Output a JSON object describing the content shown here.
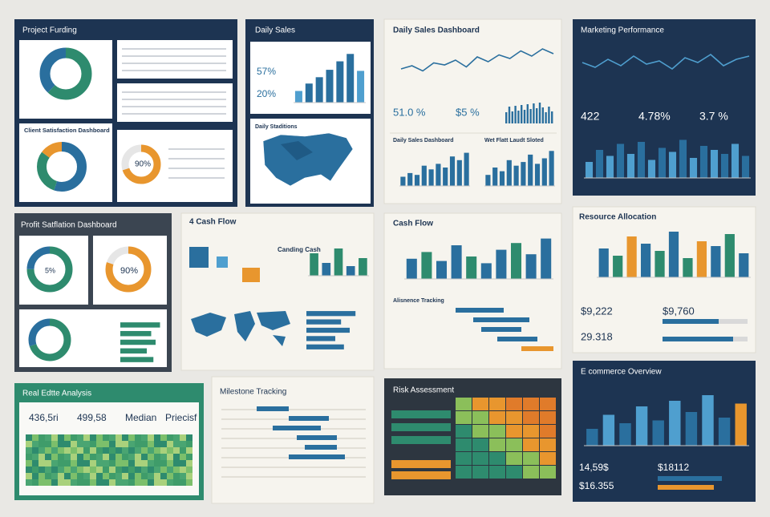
{
  "project_funding": {
    "title": "Project Furding",
    "subtitle": "Client Satisfaction Dashboard",
    "donut_value": "90%"
  },
  "daily_sales": {
    "title": "Daily Sales",
    "kpis": [
      "57%",
      "20%"
    ],
    "bars": [
      22,
      36,
      48,
      62,
      78,
      92,
      60
    ],
    "map_title": "Daily Staditions"
  },
  "daily_sales_dashboard": {
    "title": "Daily Sales Dashboard",
    "kpis": [
      "51.0 %",
      "$5 %"
    ],
    "line": [
      40,
      48,
      35,
      55,
      50,
      62,
      45,
      70,
      58,
      75,
      66,
      85,
      72,
      90,
      78
    ],
    "sub1": "Daily Sales Dashboard",
    "bars1": [
      25,
      35,
      30,
      55,
      45,
      60,
      50,
      80,
      70,
      90
    ],
    "sub2": "Wet Flatt Laudt Sloted",
    "bars2": [
      30,
      50,
      40,
      70,
      55,
      65,
      85,
      60,
      75,
      95
    ]
  },
  "marketing": {
    "title": "Marketing Performance",
    "kpis": [
      "422",
      "4.78%",
      "3.7 %"
    ],
    "line": [
      50,
      35,
      60,
      40,
      70,
      45,
      55,
      30,
      65,
      50,
      75,
      40,
      60,
      70
    ],
    "bars": [
      40,
      70,
      55,
      85,
      60,
      90,
      45,
      75,
      65,
      95,
      50,
      80,
      70,
      60,
      85,
      55
    ]
  },
  "profit": {
    "title": "Profit Satflation Dashboard",
    "donuts": [
      "5%",
      "90%"
    ],
    "hbars": [
      90,
      70,
      80,
      60,
      75
    ]
  },
  "cash_flow_4": {
    "title": "4 Cash Flow",
    "label": "Canding Cash",
    "bars": [
      70,
      40,
      85,
      30,
      55
    ],
    "hbars": [
      85,
      60,
      75,
      50,
      65
    ]
  },
  "cash_flow": {
    "title": "Cash Flow",
    "bars": [
      45,
      60,
      40,
      75,
      50,
      35,
      65,
      80,
      55,
      90
    ],
    "tracking": "Alisnence Tracking"
  },
  "resource": {
    "title": "Resource Allocation",
    "bars": [
      60,
      45,
      85,
      70,
      55,
      95,
      40,
      75,
      65,
      90,
      50
    ],
    "kpis": [
      "$9,222",
      "$9,760",
      "29.318"
    ]
  },
  "real_estate": {
    "title": "Real Edtte Analysis",
    "kpis": [
      "436,5ri",
      "499,58",
      "Median",
      "Priecisf"
    ]
  },
  "milestone": {
    "title": "Milestone Tracking"
  },
  "risk": {
    "title": "Risk Assessment"
  },
  "ecommerce": {
    "title": "E commerce Overview",
    "bars": [
      30,
      55,
      40,
      70,
      45,
      80,
      60,
      90,
      50,
      75
    ],
    "kpis": [
      "14,59$",
      "$18112",
      "$16.355"
    ]
  }
}
